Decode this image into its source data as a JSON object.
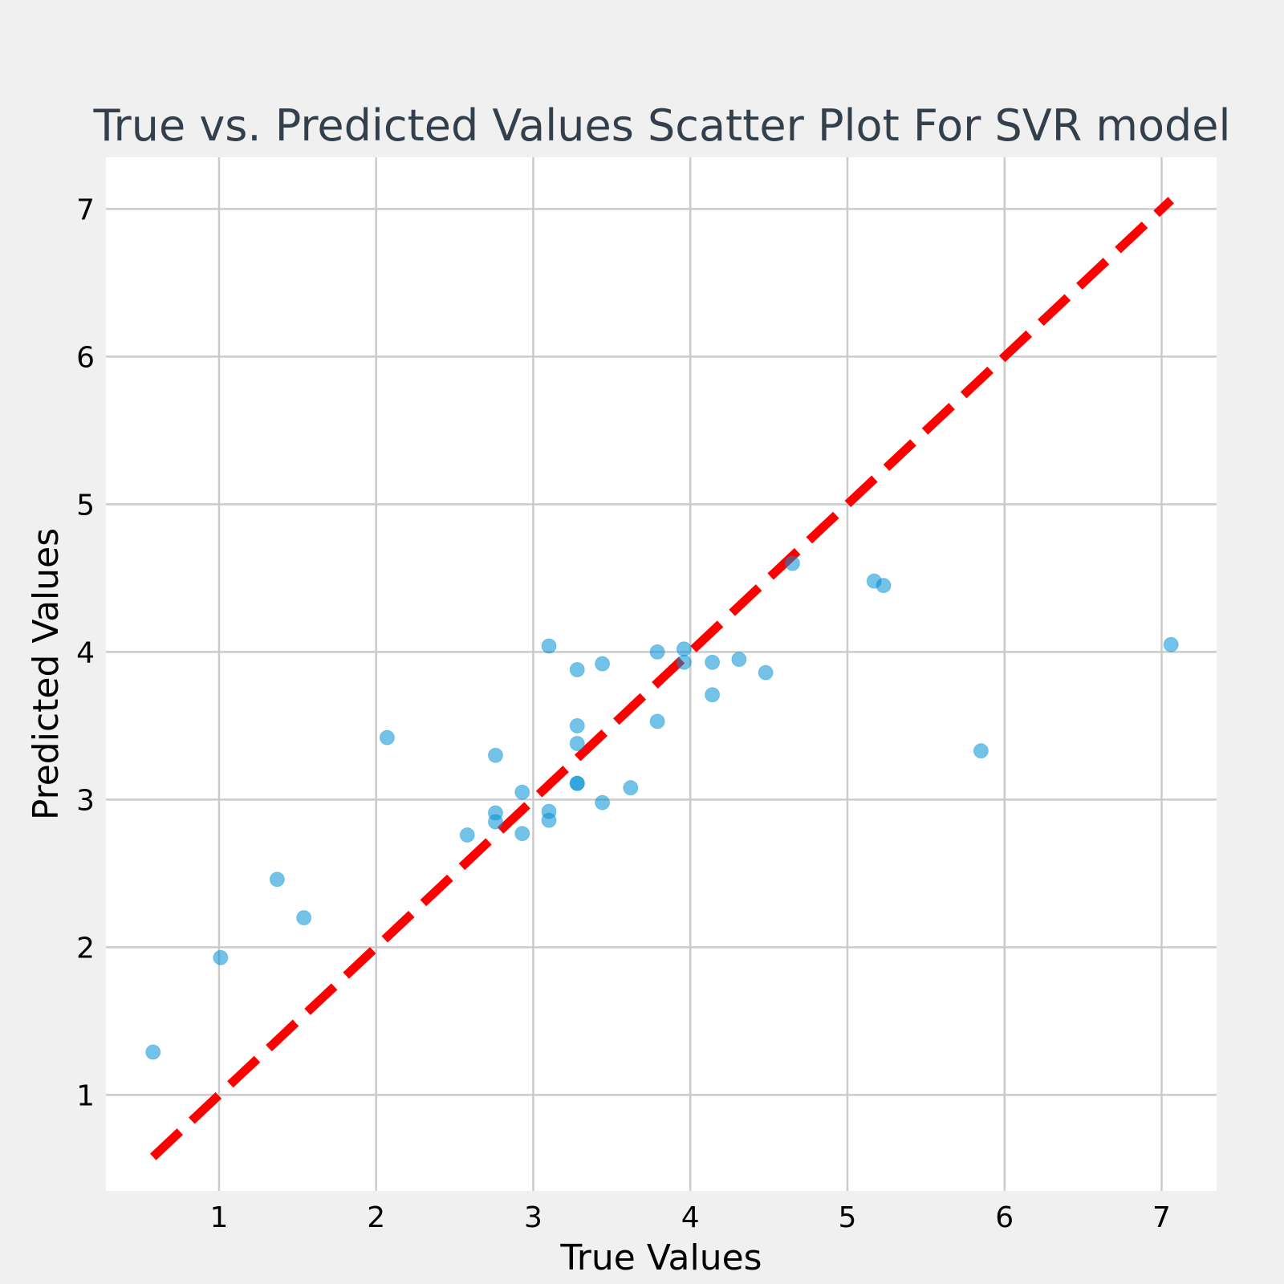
{
  "chart_data": {
    "type": "scatter",
    "title": "True vs. Predicted Values Scatter Plot For SVR model",
    "xlabel": "True Values",
    "ylabel": "Predicted Values",
    "xlim": [
      0.28,
      7.35
    ],
    "ylim": [
      0.35,
      7.35
    ],
    "xticks": [
      1,
      2,
      3,
      4,
      5,
      6,
      7
    ],
    "yticks": [
      1,
      2,
      3,
      4,
      5,
      6,
      7
    ],
    "grid": true,
    "point_color": "#008fd5",
    "reference_line": {
      "type": "y = x",
      "color": "#ff0000",
      "style": "dashed",
      "from": 0.58,
      "to": 7.06
    },
    "points": [
      {
        "x": 0.58,
        "y": 1.29
      },
      {
        "x": 1.01,
        "y": 1.93
      },
      {
        "x": 1.37,
        "y": 2.46
      },
      {
        "x": 1.54,
        "y": 2.2
      },
      {
        "x": 2.07,
        "y": 3.42
      },
      {
        "x": 2.58,
        "y": 2.76
      },
      {
        "x": 2.76,
        "y": 3.3
      },
      {
        "x": 2.76,
        "y": 2.91
      },
      {
        "x": 2.76,
        "y": 2.85
      },
      {
        "x": 2.93,
        "y": 3.05
      },
      {
        "x": 2.93,
        "y": 2.77
      },
      {
        "x": 3.1,
        "y": 4.04
      },
      {
        "x": 3.1,
        "y": 2.92
      },
      {
        "x": 3.1,
        "y": 2.86
      },
      {
        "x": 3.28,
        "y": 3.88
      },
      {
        "x": 3.28,
        "y": 3.5
      },
      {
        "x": 3.28,
        "y": 3.38
      },
      {
        "x": 3.28,
        "y": 3.11
      },
      {
        "x": 3.28,
        "y": 3.11
      },
      {
        "x": 3.44,
        "y": 3.92
      },
      {
        "x": 3.44,
        "y": 2.98
      },
      {
        "x": 3.62,
        "y": 3.08
      },
      {
        "x": 3.79,
        "y": 4.0
      },
      {
        "x": 3.79,
        "y": 3.53
      },
      {
        "x": 3.96,
        "y": 4.02
      },
      {
        "x": 3.96,
        "y": 3.93
      },
      {
        "x": 4.14,
        "y": 3.93
      },
      {
        "x": 4.14,
        "y": 3.71
      },
      {
        "x": 4.31,
        "y": 3.95
      },
      {
        "x": 4.48,
        "y": 3.86
      },
      {
        "x": 4.65,
        "y": 4.6
      },
      {
        "x": 5.17,
        "y": 4.48
      },
      {
        "x": 5.23,
        "y": 4.45
      },
      {
        "x": 5.85,
        "y": 3.33
      },
      {
        "x": 7.06,
        "y": 4.05
      }
    ]
  }
}
